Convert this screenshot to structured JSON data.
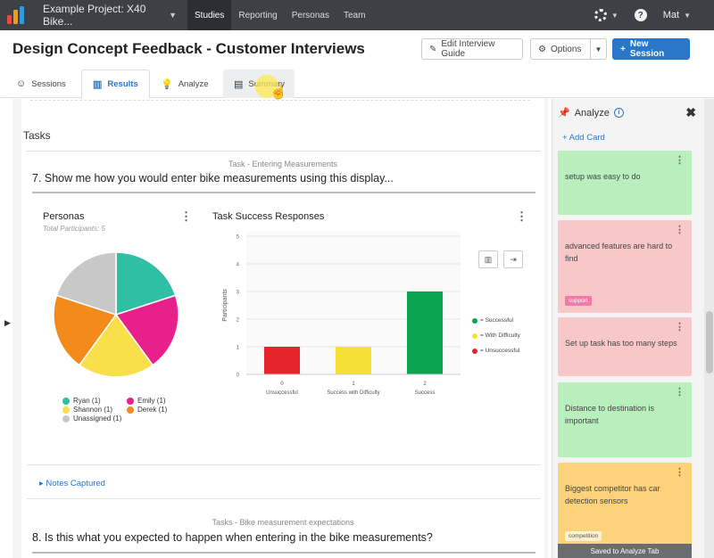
{
  "topbar": {
    "project": "Example Project: X40 Bike...",
    "nav": [
      "Studies",
      "Reporting",
      "Personas",
      "Team"
    ],
    "active_nav": "Studies",
    "user": "Mat"
  },
  "header": {
    "title": "Design Concept Feedback - Customer Interviews",
    "edit_button": "Edit Interview Guide",
    "options_button": "Options",
    "new_session_button": "New Session"
  },
  "tabs": [
    {
      "label": "Sessions",
      "icon": "users-icon"
    },
    {
      "label": "Results",
      "icon": "bar-chart-icon"
    },
    {
      "label": "Analyze",
      "icon": "lightbulb-icon"
    },
    {
      "label": "Summary",
      "icon": "clipboard-icon"
    }
  ],
  "active_tab": "Results",
  "main": {
    "section_title": "Tasks",
    "question1": {
      "category": "Task - Entering Measurements",
      "text": "7. Show me how you would enter bike measurements using this display..."
    },
    "question2": {
      "category": "Tasks - Bike measurement expectations",
      "text": "8. Is this what you expected to happen when entering in the bike measurements?"
    },
    "notes_link": "Notes Captured"
  },
  "chart_data": [
    {
      "type": "pie",
      "title": "Personas",
      "subtitle": "Total Participants: 5",
      "slices": [
        {
          "label": "Ryan (1)",
          "value": 1,
          "color": "#2ebfa5"
        },
        {
          "label": "Emily (1)",
          "value": 1,
          "color": "#e8208c"
        },
        {
          "label": "Shannon (1)",
          "value": 1,
          "color": "#f9e04b"
        },
        {
          "label": "Derek (1)",
          "value": 1,
          "color": "#f38a1c"
        },
        {
          "label": "Unassigned (1)",
          "value": 1,
          "color": "#c8c8c8"
        }
      ]
    },
    {
      "type": "bar",
      "title": "Task Success Responses",
      "ylabel": "Participants",
      "ylim": [
        0,
        5
      ],
      "yticks": [
        "0",
        "1",
        "2",
        "3",
        "4",
        "5"
      ],
      "categories": [
        {
          "code": "0",
          "label": "Unsuccessful"
        },
        {
          "code": "1",
          "label": "Success with Difficulty"
        },
        {
          "code": "2",
          "label": "Success"
        }
      ],
      "values": [
        1,
        1,
        3
      ],
      "colors": [
        "#e5242c",
        "#f6e033",
        "#0aa450"
      ],
      "legend": [
        {
          "label": "= Successful",
          "color": "#0aa450"
        },
        {
          "label": "= With Difficulty",
          "color": "#f6e033"
        },
        {
          "label": "= Unsuccessful",
          "color": "#e5242c"
        }
      ],
      "legend_position": "right"
    }
  ],
  "panel": {
    "title": "Analyze",
    "add_card": "+ Add Card",
    "cards": [
      {
        "text": "setup was easy to do",
        "color": "green",
        "tag": ""
      },
      {
        "text": "advanced features are hard to find",
        "color": "red",
        "tag": "support"
      },
      {
        "text": "Set up task has too many steps",
        "color": "red",
        "tag": ""
      },
      {
        "text": "Distance to destination is important",
        "color": "green",
        "tag": ""
      },
      {
        "text": "Biggest competitor has car detection sensors",
        "color": "orange",
        "tag": "competition"
      }
    ],
    "toast": "Saved to Analyze Tab"
  }
}
